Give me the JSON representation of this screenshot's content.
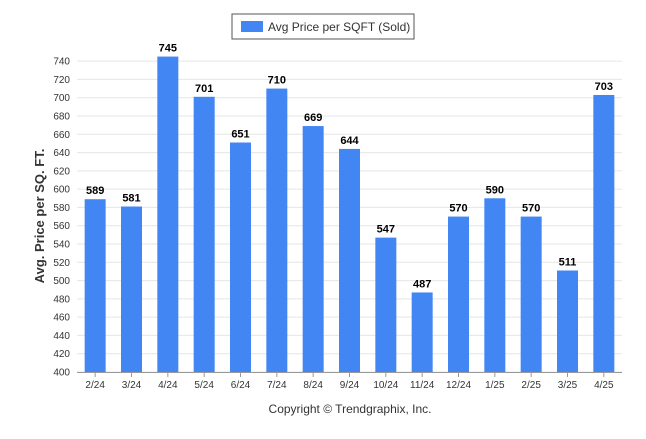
{
  "chart_data": {
    "type": "bar",
    "categories": [
      "2/24",
      "3/24",
      "4/24",
      "5/24",
      "6/24",
      "7/24",
      "8/24",
      "9/24",
      "10/24",
      "11/24",
      "12/24",
      "1/25",
      "2/25",
      "3/25",
      "4/25"
    ],
    "series": [
      {
        "name": "Avg Price per SQFT (Sold)",
        "values": [
          589,
          581,
          745,
          701,
          651,
          710,
          669,
          644,
          547,
          487,
          570,
          590,
          570,
          511,
          703
        ],
        "color": "#4286f4"
      }
    ],
    "title": "",
    "xlabel": "",
    "ylabel": "Avg. Price per SQ. FT.",
    "ylim": [
      400,
      750
    ],
    "yticks": [
      400,
      420,
      440,
      460,
      480,
      500,
      520,
      540,
      560,
      580,
      600,
      620,
      640,
      660,
      680,
      700,
      720,
      740
    ],
    "grid": true,
    "legend_position": "top-center",
    "data_labels": true
  },
  "footer": {
    "copyright": "Copyright © Trendgraphix, Inc."
  },
  "colors": {
    "bar": "#4286f4",
    "grid": "#e6e6e6",
    "axis": "#999999"
  }
}
